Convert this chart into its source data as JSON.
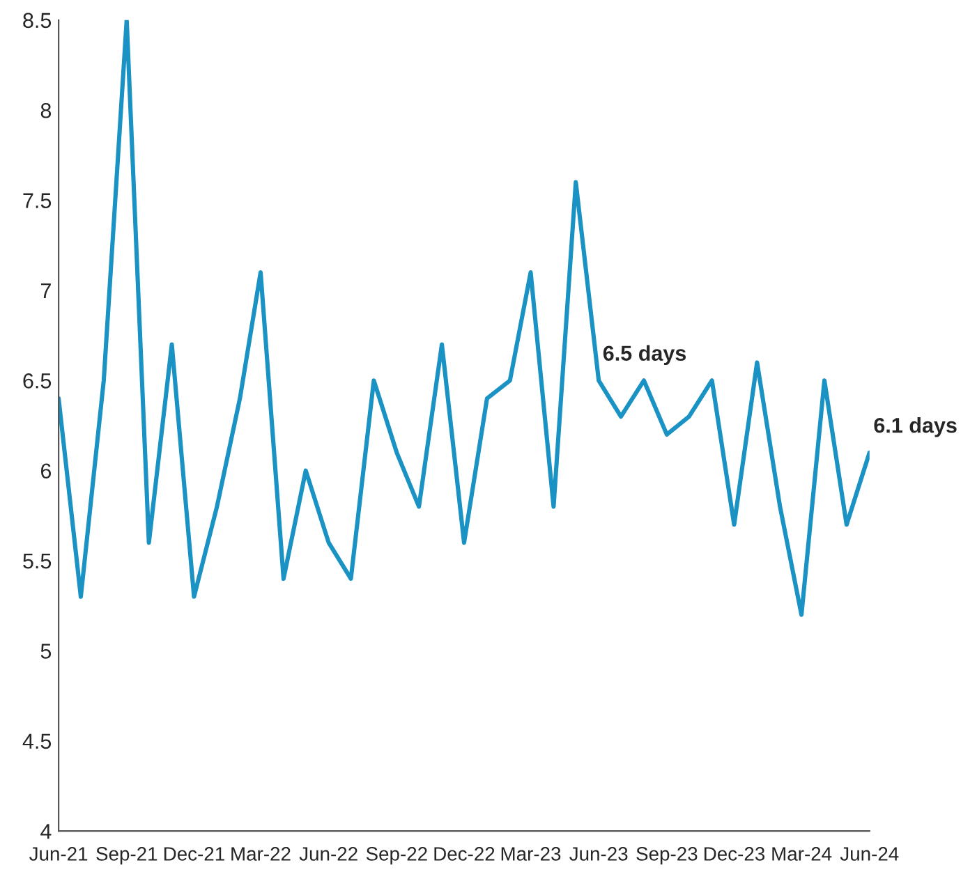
{
  "chart_data": {
    "type": "line",
    "x": [
      "2021-06",
      "2021-07",
      "2021-08",
      "2021-09",
      "2021-10",
      "2021-11",
      "2021-12",
      "2022-01",
      "2022-02",
      "2022-03",
      "2022-04",
      "2022-05",
      "2022-06",
      "2022-07",
      "2022-08",
      "2022-09",
      "2022-10",
      "2022-11",
      "2022-12",
      "2023-01",
      "2023-02",
      "2023-03",
      "2023-04",
      "2023-05",
      "2023-06",
      "2023-07",
      "2023-08",
      "2023-09",
      "2023-10",
      "2023-11",
      "2023-12",
      "2024-01",
      "2024-02",
      "2024-03",
      "2024-04",
      "2024-05",
      "2024-06"
    ],
    "series": [
      {
        "color": "#1a93c4",
        "values": [
          6.4,
          5.3,
          6.5,
          8.5,
          5.6,
          6.7,
          5.3,
          5.8,
          6.4,
          7.1,
          5.4,
          6.0,
          5.6,
          5.4,
          6.5,
          6.1,
          5.8,
          6.7,
          5.6,
          6.4,
          6.5,
          7.1,
          5.8,
          7.6,
          6.5,
          6.3,
          6.5,
          6.2,
          6.3,
          6.5,
          5.7,
          6.6,
          5.8,
          5.2,
          6.5,
          5.7,
          6.1
        ]
      }
    ],
    "annotations": [
      {
        "text": "6.5 days",
        "x": "2023-06",
        "y": 6.5
      },
      {
        "text": "6.1 days",
        "x": "2024-06",
        "y": 6.1
      }
    ],
    "xlim": [
      "2021-06",
      "2024-06"
    ],
    "xticks": [
      {
        "value": "2021-06",
        "label": "Jun-21"
      },
      {
        "value": "2021-09",
        "label": "Sep-21"
      },
      {
        "value": "2021-12",
        "label": "Dec-21"
      },
      {
        "value": "2022-03",
        "label": "Mar-22"
      },
      {
        "value": "2022-06",
        "label": "Jun-22"
      },
      {
        "value": "2022-09",
        "label": "Sep-22"
      },
      {
        "value": "2022-12",
        "label": "Dec-22"
      },
      {
        "value": "2023-03",
        "label": "Mar-23"
      },
      {
        "value": "2023-06",
        "label": "Jun-23"
      },
      {
        "value": "2023-09",
        "label": "Sep-23"
      },
      {
        "value": "2023-12",
        "label": "Dec-23"
      },
      {
        "value": "2024-03",
        "label": "Mar-24"
      },
      {
        "value": "2024-06",
        "label": "Jun-24"
      }
    ],
    "ylim": [
      4,
      8.5
    ],
    "yticks": [
      4,
      4.5,
      5,
      5.5,
      6,
      6.5,
      7,
      7.5,
      8,
      8.5
    ],
    "grid": false,
    "legend": false,
    "marker": "none",
    "line_style": "solid"
  }
}
